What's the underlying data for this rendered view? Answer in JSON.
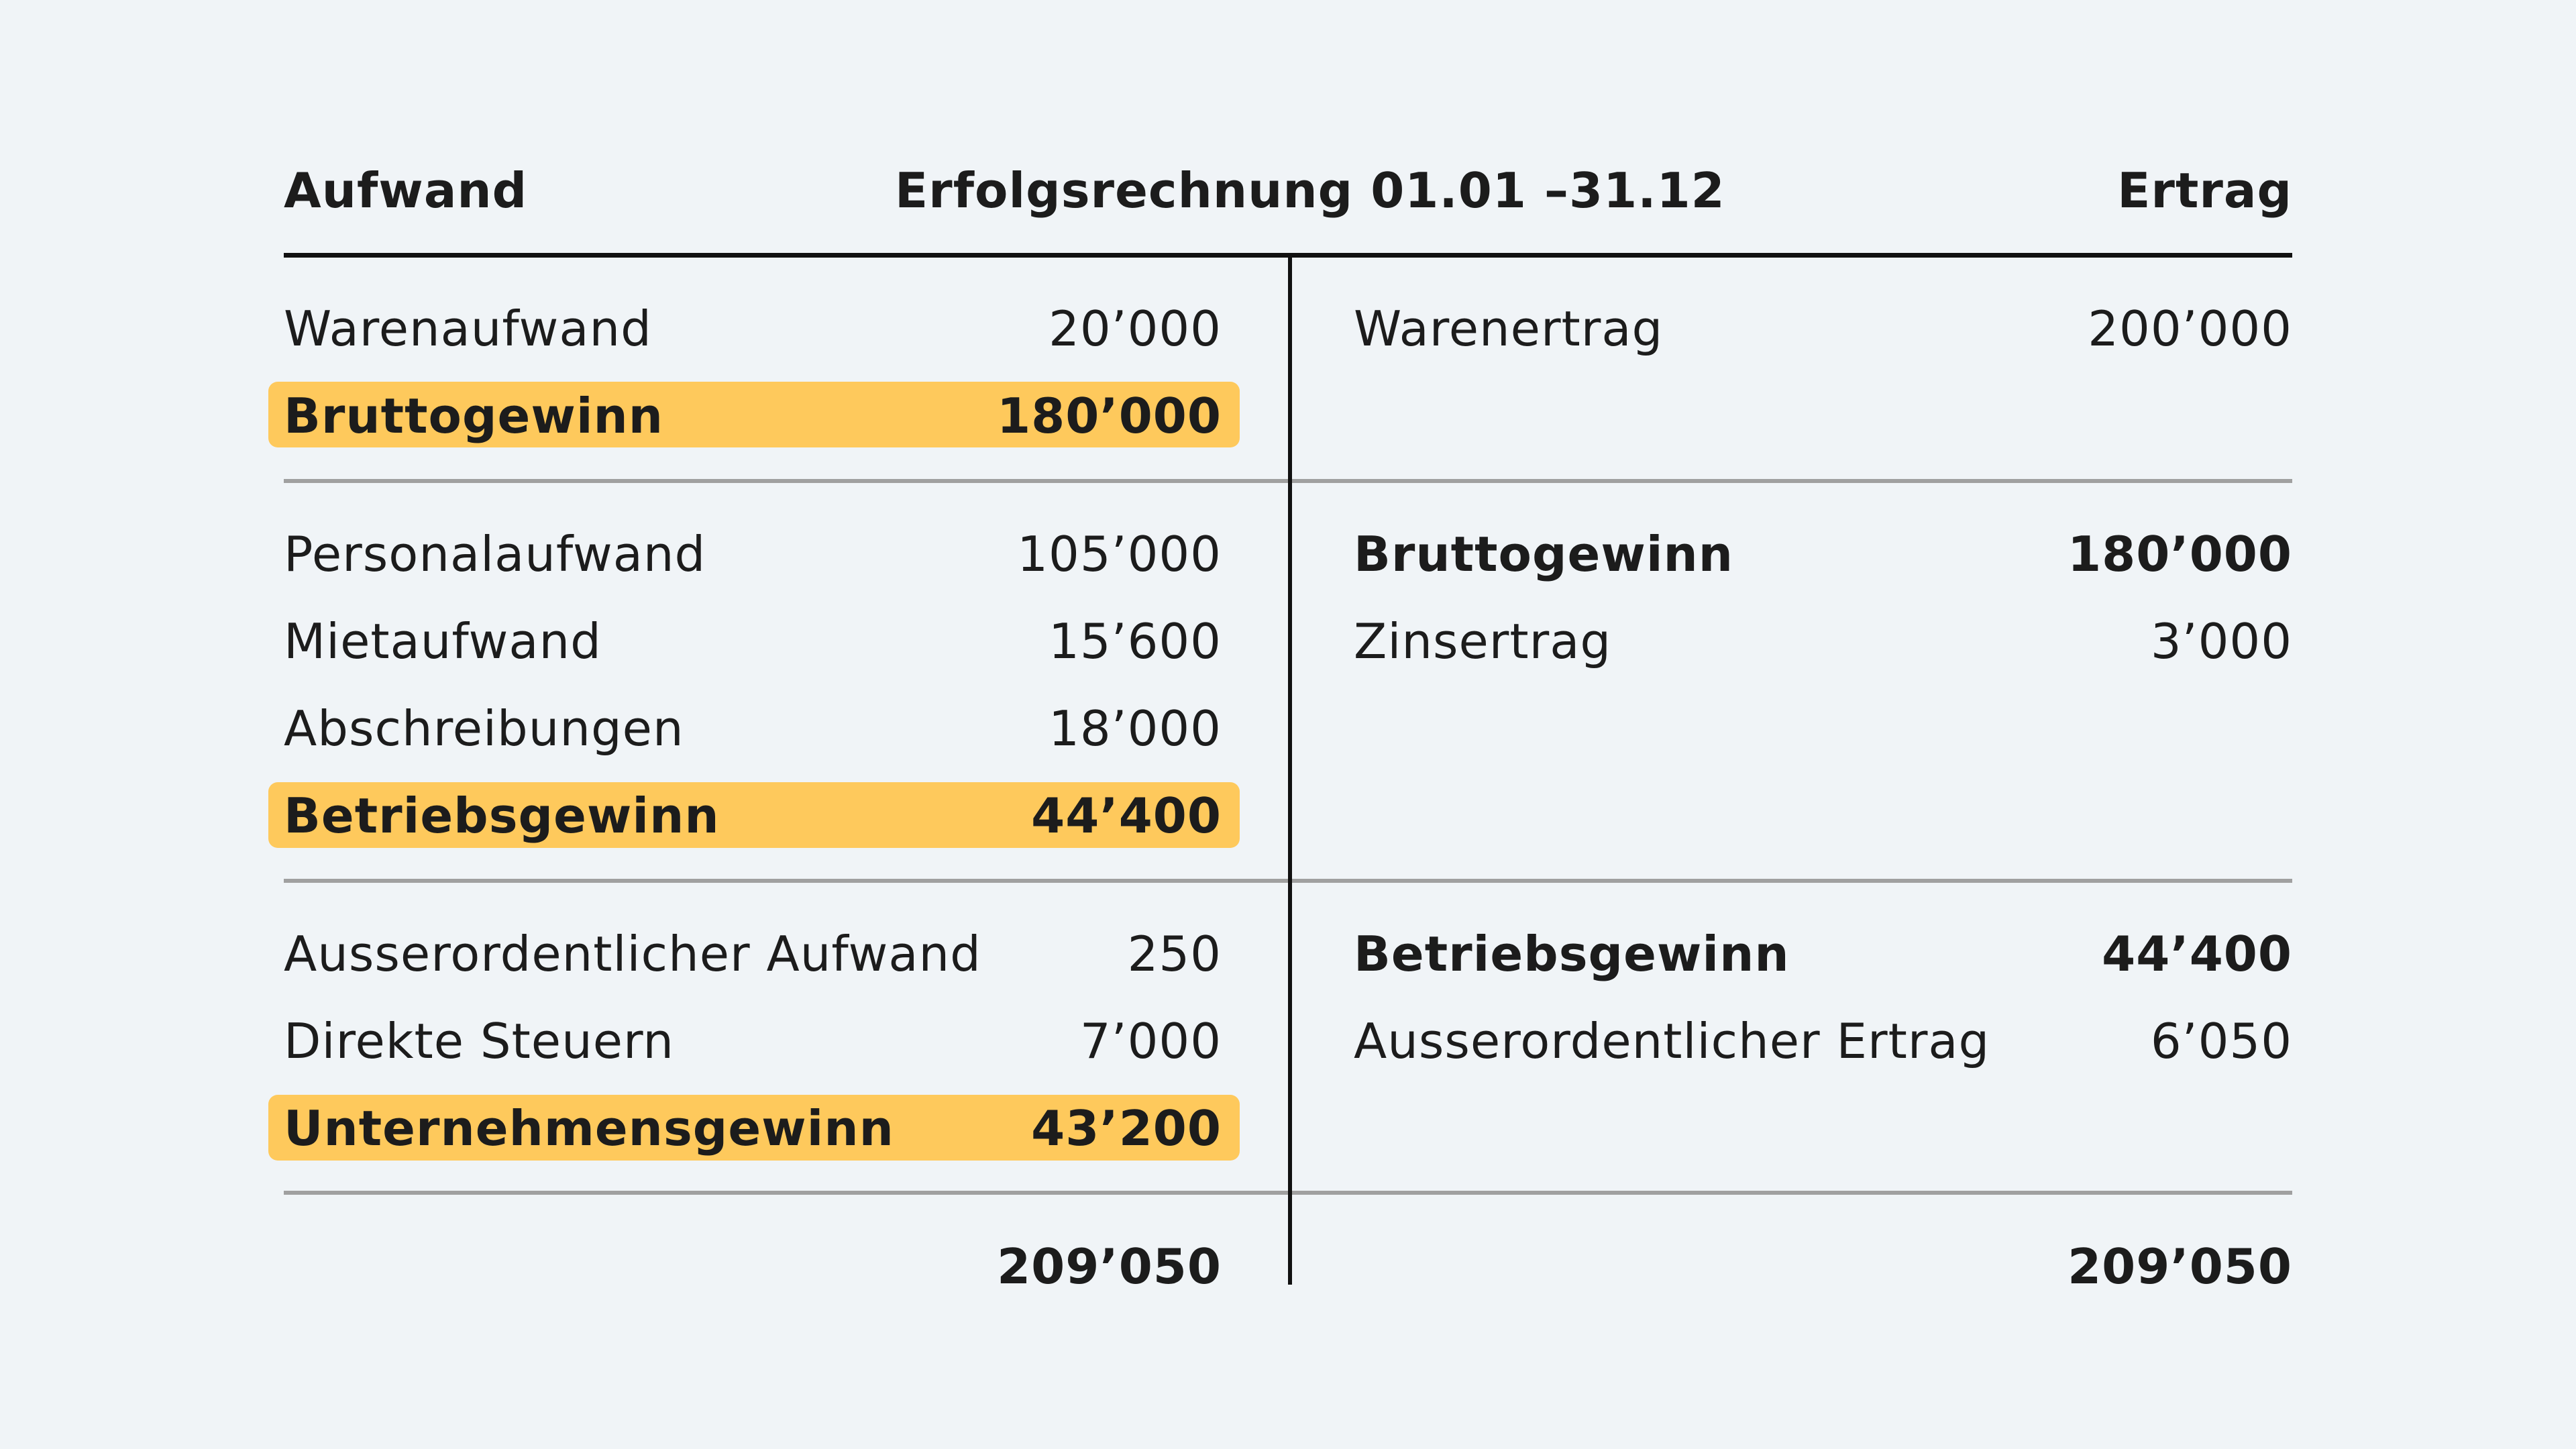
{
  "header": {
    "left": "Aufwand",
    "title": "Erfolgsrechnung 01.01 –31.12",
    "right": "Ertrag"
  },
  "aufwand": [
    {
      "label": "Warenaufwand",
      "value": "20’000"
    },
    {
      "label": "Bruttogewinn",
      "value": "180’000"
    },
    {
      "label": "Personalaufwand",
      "value": "105’000"
    },
    {
      "label": "Mietaufwand",
      "value": "15’600"
    },
    {
      "label": "Abschreibungen",
      "value": "18’000"
    },
    {
      "label": "Betriebsgewinn",
      "value": "44’400"
    },
    {
      "label": "Ausserordentlicher Aufwand",
      "value": "250"
    },
    {
      "label": "Direkte Steuern",
      "value": "7’000"
    },
    {
      "label": "Unternehmensgewinn",
      "value": "43’200"
    }
  ],
  "ertrag": [
    {
      "label": "Warenertrag",
      "value": "200’000"
    },
    {
      "label": "Bruttogewinn",
      "value": "180’000"
    },
    {
      "label": "Zinsertrag",
      "value": "3’000"
    },
    {
      "label": "Betriebsgewinn",
      "value": "44’400"
    },
    {
      "label": "Ausserordentlicher Ertrag",
      "value": "6’050"
    }
  ],
  "totals": {
    "aufwand": "209’050",
    "ertrag": "209’050"
  },
  "colors": {
    "background": "#f0f4f7",
    "highlight": "#fec95c",
    "text": "#1c1c1c",
    "rule_thin": "#a0a0a0"
  }
}
